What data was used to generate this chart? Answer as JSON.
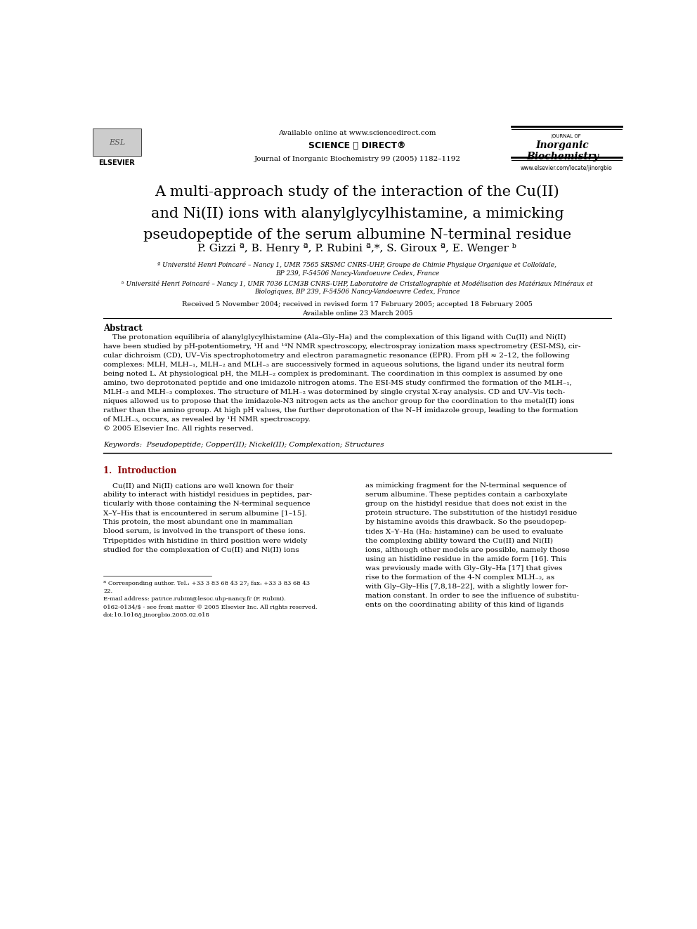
{
  "bg_color": "#ffffff",
  "header_available": "Available online at www.sciencedirect.com",
  "header_journal": "Journal of Inorganic Biochemistry 99 (2005) 1182–1192",
  "header_sciencedirect": "SCIENCE ⓓ DIRECT®",
  "header_website": "www.elsevier.com/locate/jinorgbio",
  "title_line1": "A multi-approach study of the interaction of the Cu(II)",
  "title_line2": "and Ni(II) ions with alanylglycylhistamine, a mimicking",
  "title_line3": "pseudopeptide of the serum albumine N-terminal residue",
  "authors": "P. Gizzi ª, B. Henry ª, P. Rubini ª,*, S. Giroux ª, E. Wenger ᵇ",
  "affil_a_line1": "ª Université Henri Poincaré – Nancy 1, UMR 7565 SRSMC CNRS-UHP, Groupe de Chimie Physique Organique et Colloïdale,",
  "affil_a_line2": "BP 239, F-54506 Nancy-Vandoeuvre Cedex, France",
  "affil_b_line1": "ᵇ Université Henri Poincaré – Nancy 1, UMR 7036 LCM3B CNRS-UHP, Laboratoire de Cristallographie et Modélisation des Matériaux Minéraux et",
  "affil_b_line2": "Biologiques, BP 239, F-54506 Nancy-Vandoeuvre Cedex, France",
  "received": "Received 5 November 2004; received in revised form 17 February 2005; accepted 18 February 2005",
  "available_online": "Available online 23 March 2005",
  "abstract_title": "Abstract",
  "abstract_lines": [
    "    The protonation equilibria of alanylglycylhistamine (Ala–Gly–Ha) and the complexation of this ligand with Cu(II) and Ni(II)",
    "have been studied by pH-potentiometry, ¹H and ¹⁴N NMR spectroscopy, electrospray ionization mass spectrometry (ESI-MS), cir-",
    "cular dichroism (CD), UV–Vis spectrophotometry and electron paramagnetic resonance (EPR). From pH ≈ 2–12, the following",
    "complexes: MLH, MLH₋₁, MLH₋₂ and MLH₋₃ are successively formed in aqueous solutions, the ligand under its neutral form",
    "being noted L. At physiological pH, the MLH₋₂ complex is predominant. The coordination in this complex is assumed by one",
    "amino, two deprotonated peptide and one imidazole nitrogen atoms. The ESI-MS study confirmed the formation of the MLH₋₁,",
    "MLH₋₂ and MLH₋₃ complexes. The structure of MLH₋₂ was determined by single crystal X-ray analysis. CD and UV–Vis tech-",
    "niques allowed us to propose that the imidazole-N3 nitrogen acts as the anchor group for the coordination to the metal(II) ions",
    "rather than the amino group. At high pH values, the further deprotonation of the N–H imidazole group, leading to the formation",
    "of MLH₋₃, occurs, as revealed by ¹H NMR spectroscopy.",
    "© 2005 Elsevier Inc. All rights reserved."
  ],
  "keywords": "Keywords:  Pseudopeptide; Copper(II); Nickel(II); Complexation; Structures",
  "section1_title": "1.  Introduction",
  "col1_lines": [
    "    Cu(II) and Ni(II) cations are well known for their",
    "ability to interact with histidyl residues in peptides, par-",
    "ticularly with those containing the N-terminal sequence",
    "X–Y–His that is encountered in serum albumine [1–15].",
    "This protein, the most abundant one in mammalian",
    "blood serum, is involved in the transport of these ions.",
    "Tripeptides with histidine in third position were widely",
    "studied for the complexation of Cu(II) and Ni(II) ions"
  ],
  "col2_lines": [
    "as mimicking fragment for the N-terminal sequence of",
    "serum albumine. These peptides contain a carboxylate",
    "group on the histidyl residue that does not exist in the",
    "protein structure. The substitution of the histidyl residue",
    "by histamine avoids this drawback. So the pseudopep-",
    "tides X–Y–Ha (Ha: histamine) can be used to evaluate",
    "the complexing ability toward the Cu(II) and Ni(II)",
    "ions, although other models are possible, namely those",
    "using an histidine residue in the amide form [16]. This",
    "was previously made with Gly–Gly–Ha [17] that gives",
    "rise to the formation of the 4-N complex MLH₋₂, as",
    "with Gly–Gly–His [7,8,18–22], with a slightly lower for-",
    "mation constant. In order to see the influence of substitu-",
    "ents on the coordinating ability of this kind of ligands"
  ],
  "footnote1a": "* Corresponding author. Tel.: +33 3 83 68 43 27; fax: +33 3 83 68 43",
  "footnote1b": "22.",
  "footnote2": "E-mail address: patrice.rubini@lesoc.uhp-nancy.fr (P. Rubini).",
  "footnote3a": "0162-0134/$ - see front matter © 2005 Elsevier Inc. All rights reserved.",
  "footnote3b": "doi:10.1016/j.jinorgbio.2005.02.018",
  "section_title_color": "#8B0000"
}
